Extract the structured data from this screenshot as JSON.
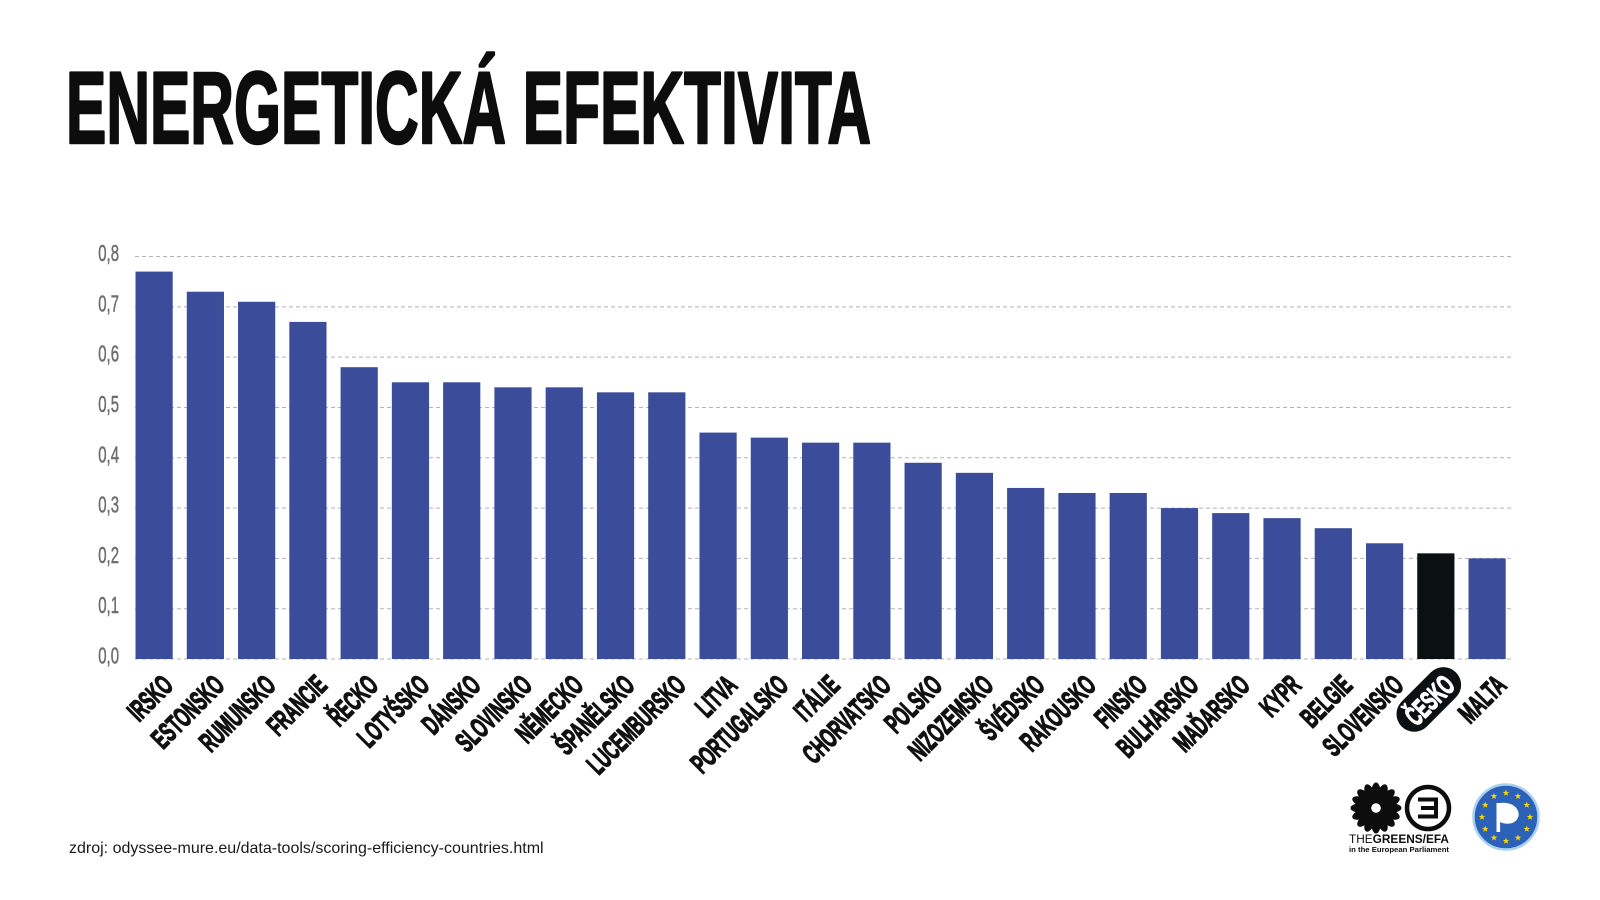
{
  "source": "zdroj: odyssee-mure.eu/data-tools/scoring-efficiency-countries.html",
  "chart_data": {
    "type": "bar",
    "title": "ENERGETICKÁ EFEKTIVITA",
    "categories": [
      "IRSKO",
      "ESTONSKO",
      "RUMUNSKO",
      "FRANCIE",
      "ŘECKO",
      "LOTYŠSKO",
      "DÁNSKO",
      "SLOVINSKO",
      "NĚMECKO",
      "ŠPANĚLSKO",
      "LUCEMBURSKO",
      "LITVA",
      "PORTUGALSKO",
      "ITÁLIE",
      "CHORVATSKO",
      "POLSKO",
      "NIZOZEMSKO",
      "ŠVÉDSKO",
      "RAKOUSKO",
      "FINSKO",
      "BULHARSKO",
      "MAĎARSKO",
      "KYPR",
      "BELGIE",
      "SLOVENSKO",
      "ČESKO",
      "MALTA"
    ],
    "values": [
      0.77,
      0.73,
      0.71,
      0.67,
      0.58,
      0.55,
      0.55,
      0.54,
      0.54,
      0.53,
      0.53,
      0.45,
      0.44,
      0.43,
      0.43,
      0.39,
      0.37,
      0.34,
      0.33,
      0.33,
      0.3,
      0.29,
      0.28,
      0.26,
      0.23,
      0.21,
      0.2
    ],
    "ylim": [
      0,
      0.8
    ],
    "yticks": [
      {
        "value": 0.0,
        "label": "0,0"
      },
      {
        "value": 0.1,
        "label": "0,1"
      },
      {
        "value": 0.2,
        "label": "0,2"
      },
      {
        "value": 0.3,
        "label": "0,3"
      },
      {
        "value": 0.4,
        "label": "0,4"
      },
      {
        "value": 0.5,
        "label": "0,5"
      },
      {
        "value": 0.6,
        "label": "0,6"
      },
      {
        "value": 0.7,
        "label": "0,7"
      },
      {
        "value": 0.8,
        "label": "0,8"
      }
    ],
    "grid": true,
    "highlight": {
      "index": 25,
      "color": "#0b1112"
    },
    "colors": {
      "bar": "#3b4c9b",
      "grid": "#b4b4b4"
    }
  },
  "logos": {
    "greens_efa": {
      "icon": "greens-efa-sunflower-icon",
      "text_light": "THE",
      "text_bold": "GREENS/EFA",
      "subtitle": "in the European Parliament"
    },
    "pirate_party": {
      "icon": "pirate-party-flag-icon",
      "colors": {
        "ring": "#2b62b8",
        "border": "#a9d0f0",
        "stars": "#ffd400",
        "flag": "#ffffff"
      }
    }
  }
}
